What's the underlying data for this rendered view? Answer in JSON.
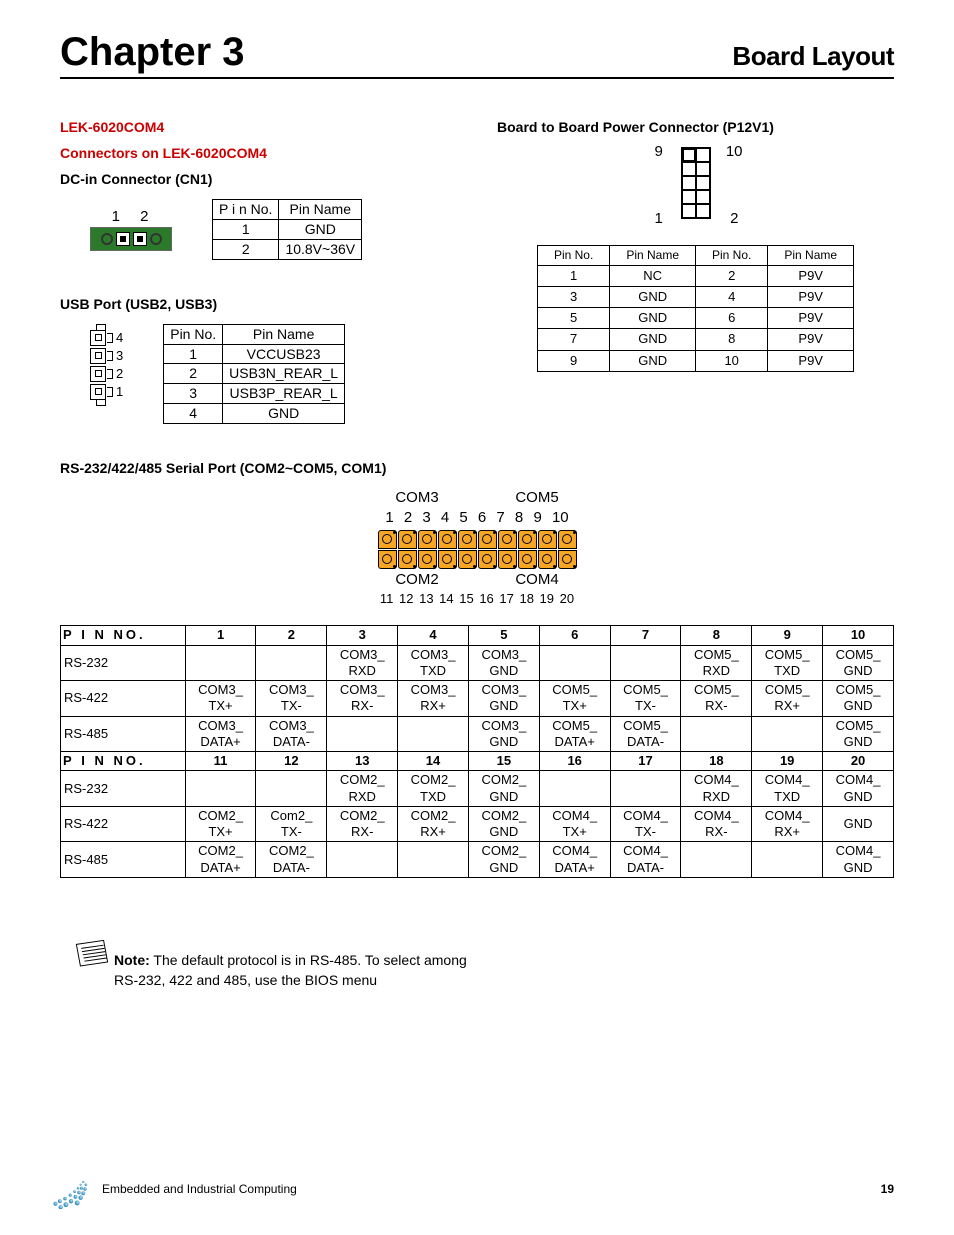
{
  "header": {
    "chapter": "Chapter 3",
    "title": "Board Layout"
  },
  "left": {
    "product_heading": "LEK-6020COM4",
    "connectors_heading": "Connectors on LEK-6020COM4",
    "dc": {
      "heading": "DC-in Connector (CN1)",
      "pin_label": "1  2",
      "table": {
        "h1": "P i n No.",
        "h2": "Pin Name",
        "rows": [
          {
            "no": "1",
            "name": "GND"
          },
          {
            "no": "2",
            "name": "10.8V~36V"
          }
        ]
      }
    },
    "usb": {
      "heading": "USB Port (USB2, USB3)",
      "pin_nums": [
        "4",
        "3",
        "2",
        "1"
      ],
      "table": {
        "h1": "Pin No.",
        "h2": "Pin Name",
        "rows": [
          {
            "no": "1",
            "name": "VCCUSB23"
          },
          {
            "no": "2",
            "name": "USB3N_REAR_L"
          },
          {
            "no": "3",
            "name": "USB3P_REAR_L"
          },
          {
            "no": "4",
            "name": "GND"
          }
        ]
      }
    },
    "serial": {
      "heading": "RS-232/422/485 Serial Port (COM2~COM5, COM1)",
      "top_labels": {
        "a": "COM3",
        "b": "COM5"
      },
      "bot_labels": {
        "a": "COM2",
        "b": "COM4"
      },
      "top_nums": "1 2 3  4 5 6 7 8 9 10",
      "bot_nums": "11 12 13 14 15 16 17 18 19 20",
      "pincount": 10,
      "big_table": {
        "pinno_label": "P I N NO.",
        "headers_top": [
          "1",
          "2",
          "3",
          "4",
          "5",
          "6",
          "7",
          "8",
          "9",
          "10"
        ],
        "headers_bot": [
          "11",
          "12",
          "13",
          "14",
          "15",
          "16",
          "17",
          "18",
          "19",
          "20"
        ],
        "rows_top": [
          {
            "label": "RS-232",
            "cells": [
              "",
              "",
              "COM3_RXD",
              "COM3_TXD",
              "COM3_GND",
              "",
              "",
              "COM5_RXD",
              "COM5_TXD",
              "COM5_GND"
            ]
          },
          {
            "label": "RS-422",
            "cells": [
              "COM3_TX+",
              "COM3_TX-",
              "COM3_RX-",
              "COM3_RX+",
              "COM3_GND",
              "COM5_TX+",
              "COM5_TX-",
              "COM5_RX-",
              "COM5_RX+",
              "COM5_GND"
            ]
          },
          {
            "label": "RS-485",
            "cells": [
              "COM3_DATA+",
              "COM3_DATA-",
              "",
              "",
              "COM3_GND",
              "COM5_DATA+",
              "COM5_DATA-",
              "",
              "",
              "COM5_GND"
            ]
          }
        ],
        "rows_bot": [
          {
            "label": "RS-232",
            "cells": [
              "",
              "",
              "COM2_RXD",
              "COM2_TXD",
              "COM2_GND",
              "",
              "",
              "COM4_RXD",
              "COM4_TXD",
              "COM4_GND"
            ]
          },
          {
            "label": "RS-422",
            "cells": [
              "COM2_TX+",
              "Com2_TX-",
              "COM2_RX-",
              "COM2_RX+",
              "COM2_GND",
              "COM4_TX+",
              "COM4_TX-",
              "COM4_RX-",
              "COM4_RX+",
              "GND"
            ]
          },
          {
            "label": "RS-485",
            "cells": [
              "COM2_DATA+",
              "COM2_DATA-",
              "",
              "",
              "COM2_GND",
              "COM4_DATA+",
              "COM4_DATA-",
              "",
              "",
              "COM4_GND"
            ]
          }
        ]
      }
    }
  },
  "right": {
    "p12": {
      "heading": "Board to Board Power Connector (P12V1)",
      "nums": {
        "tl": "9",
        "tr": "10",
        "bl": "1",
        "br": "2"
      },
      "table": {
        "h1": "Pin No.",
        "h2": "Pin Name",
        "h3": "Pin No.",
        "h4": "Pin Name",
        "rows": [
          {
            "a": "1",
            "b": "NC",
            "c": "2",
            "d": "P9V"
          },
          {
            "a": "3",
            "b": "GND",
            "c": "4",
            "d": "P9V"
          },
          {
            "a": "5",
            "b": "GND",
            "c": "6",
            "d": "P9V"
          },
          {
            "a": "7",
            "b": "GND",
            "c": "8",
            "d": "P9V"
          },
          {
            "a": "9",
            "b": "GND",
            "c": "10",
            "d": "P9V"
          }
        ]
      }
    }
  },
  "note": {
    "label": "Note:",
    "text": " The default protocol is in RS-485. To select among RS-232, 422 and 485, use the BIOS menu"
  },
  "footer": {
    "text": "Embedded and Industrial Computing",
    "page": "19"
  },
  "colors": {
    "red": "#cc0000",
    "green": "#2a7a2a",
    "orange": "#f6a623",
    "blue_start": "#7dd3e8",
    "blue_end": "#0068a6"
  }
}
